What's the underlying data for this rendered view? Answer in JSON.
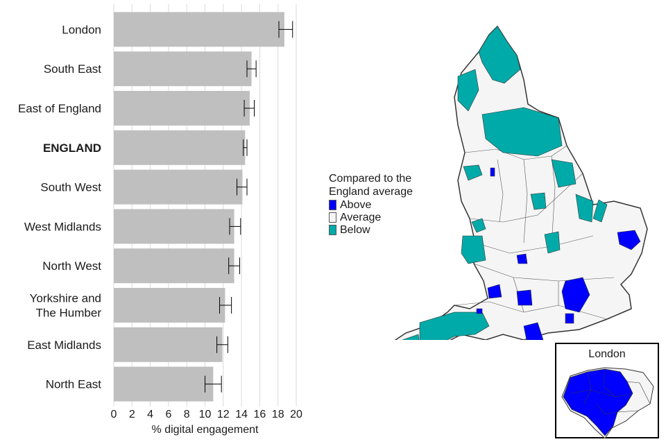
{
  "chart_data": {
    "type": "bar",
    "orientation": "horizontal",
    "categories": [
      "London",
      "South East",
      "East of England",
      "ENGLAND",
      "South West",
      "West Midlands",
      "North West",
      "Yorkshire and The Humber",
      "East Midlands",
      "North East"
    ],
    "category_lines": [
      [
        "London"
      ],
      [
        "South East"
      ],
      [
        "East of England"
      ],
      [
        "ENGLAND"
      ],
      [
        "South West"
      ],
      [
        "West Midlands"
      ],
      [
        "North West"
      ],
      [
        "Yorkshire and",
        "The Humber"
      ],
      [
        "East Midlands"
      ],
      [
        "North East"
      ]
    ],
    "bold_category": "ENGLAND",
    "values": [
      18.7,
      15.1,
      14.9,
      14.4,
      14.1,
      13.2,
      13.2,
      12.2,
      11.9,
      10.9
    ],
    "error_low": [
      18.1,
      14.6,
      14.3,
      14.2,
      13.5,
      12.7,
      12.6,
      11.6,
      11.3,
      10.0
    ],
    "error_high": [
      19.6,
      15.6,
      15.4,
      14.6,
      14.6,
      13.9,
      13.8,
      12.9,
      12.5,
      11.8
    ],
    "xlabel": "% digital engagement",
    "xlim": [
      0,
      20
    ],
    "xticks": [
      0,
      2,
      4,
      6,
      8,
      10,
      12,
      14,
      16,
      18,
      20
    ],
    "grid": "vertical",
    "colors": {
      "bar": "#bfbfbf",
      "error": "#000000",
      "grid": "#d9d9d9"
    }
  },
  "legend": {
    "title_lines": [
      "Compared to the",
      "England average"
    ],
    "items": [
      {
        "label": "Above",
        "color": "#0000ff"
      },
      {
        "label": "Average",
        "color": "#f5f5f5"
      },
      {
        "label": "Below",
        "color": "#00aaa8"
      }
    ]
  },
  "map": {
    "colors": {
      "above": "#0000ff",
      "average": "#f5f5f5",
      "below": "#00aaa8",
      "border": "#333333"
    }
  },
  "inset": {
    "title": "London"
  }
}
